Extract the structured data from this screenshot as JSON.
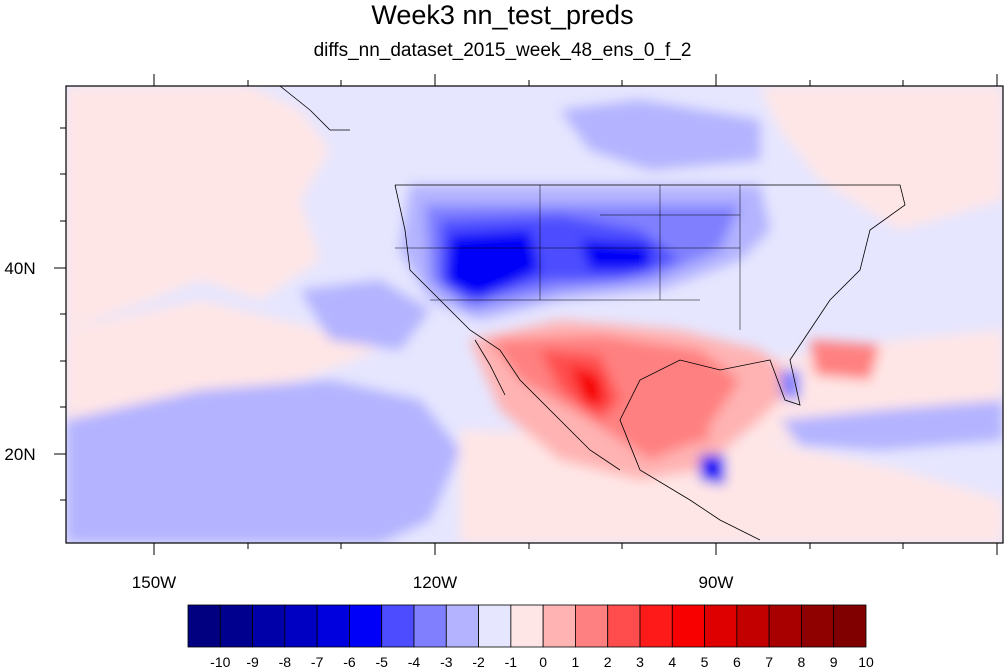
{
  "figure": {
    "title": "Week3 nn_test_preds",
    "subtitle": "diffs_nn_dataset_2015_week_48_ens_0_f_2"
  },
  "map": {
    "projection": "lat-lon",
    "lon_range": [
      -160,
      -60
    ],
    "lat_range": [
      10,
      60
    ],
    "lon_tick_labels": [
      "150W",
      "120W",
      "90W"
    ],
    "lat_tick_labels": [
      "40N",
      "20N"
    ]
  },
  "colorbar": {
    "labels": [
      "-10",
      "-9",
      "-8",
      "-7",
      "-6",
      "-5",
      "-4",
      "-3",
      "-2",
      "-1",
      "0",
      "1",
      "2",
      "3",
      "4",
      "5",
      "6",
      "7",
      "8",
      "9",
      "10"
    ],
    "colors": [
      "#000080",
      "#00008f",
      "#0000a8",
      "#0000c3",
      "#0000de",
      "#0000f8",
      "#4d4dff",
      "#8080ff",
      "#b3b3ff",
      "#e6e6ff",
      "#ffe6e6",
      "#ffb3b3",
      "#ff8080",
      "#ff4d4d",
      "#ff1a1a",
      "#f80000",
      "#de0000",
      "#c30000",
      "#a80000",
      "#8f0000",
      "#800000"
    ]
  }
}
